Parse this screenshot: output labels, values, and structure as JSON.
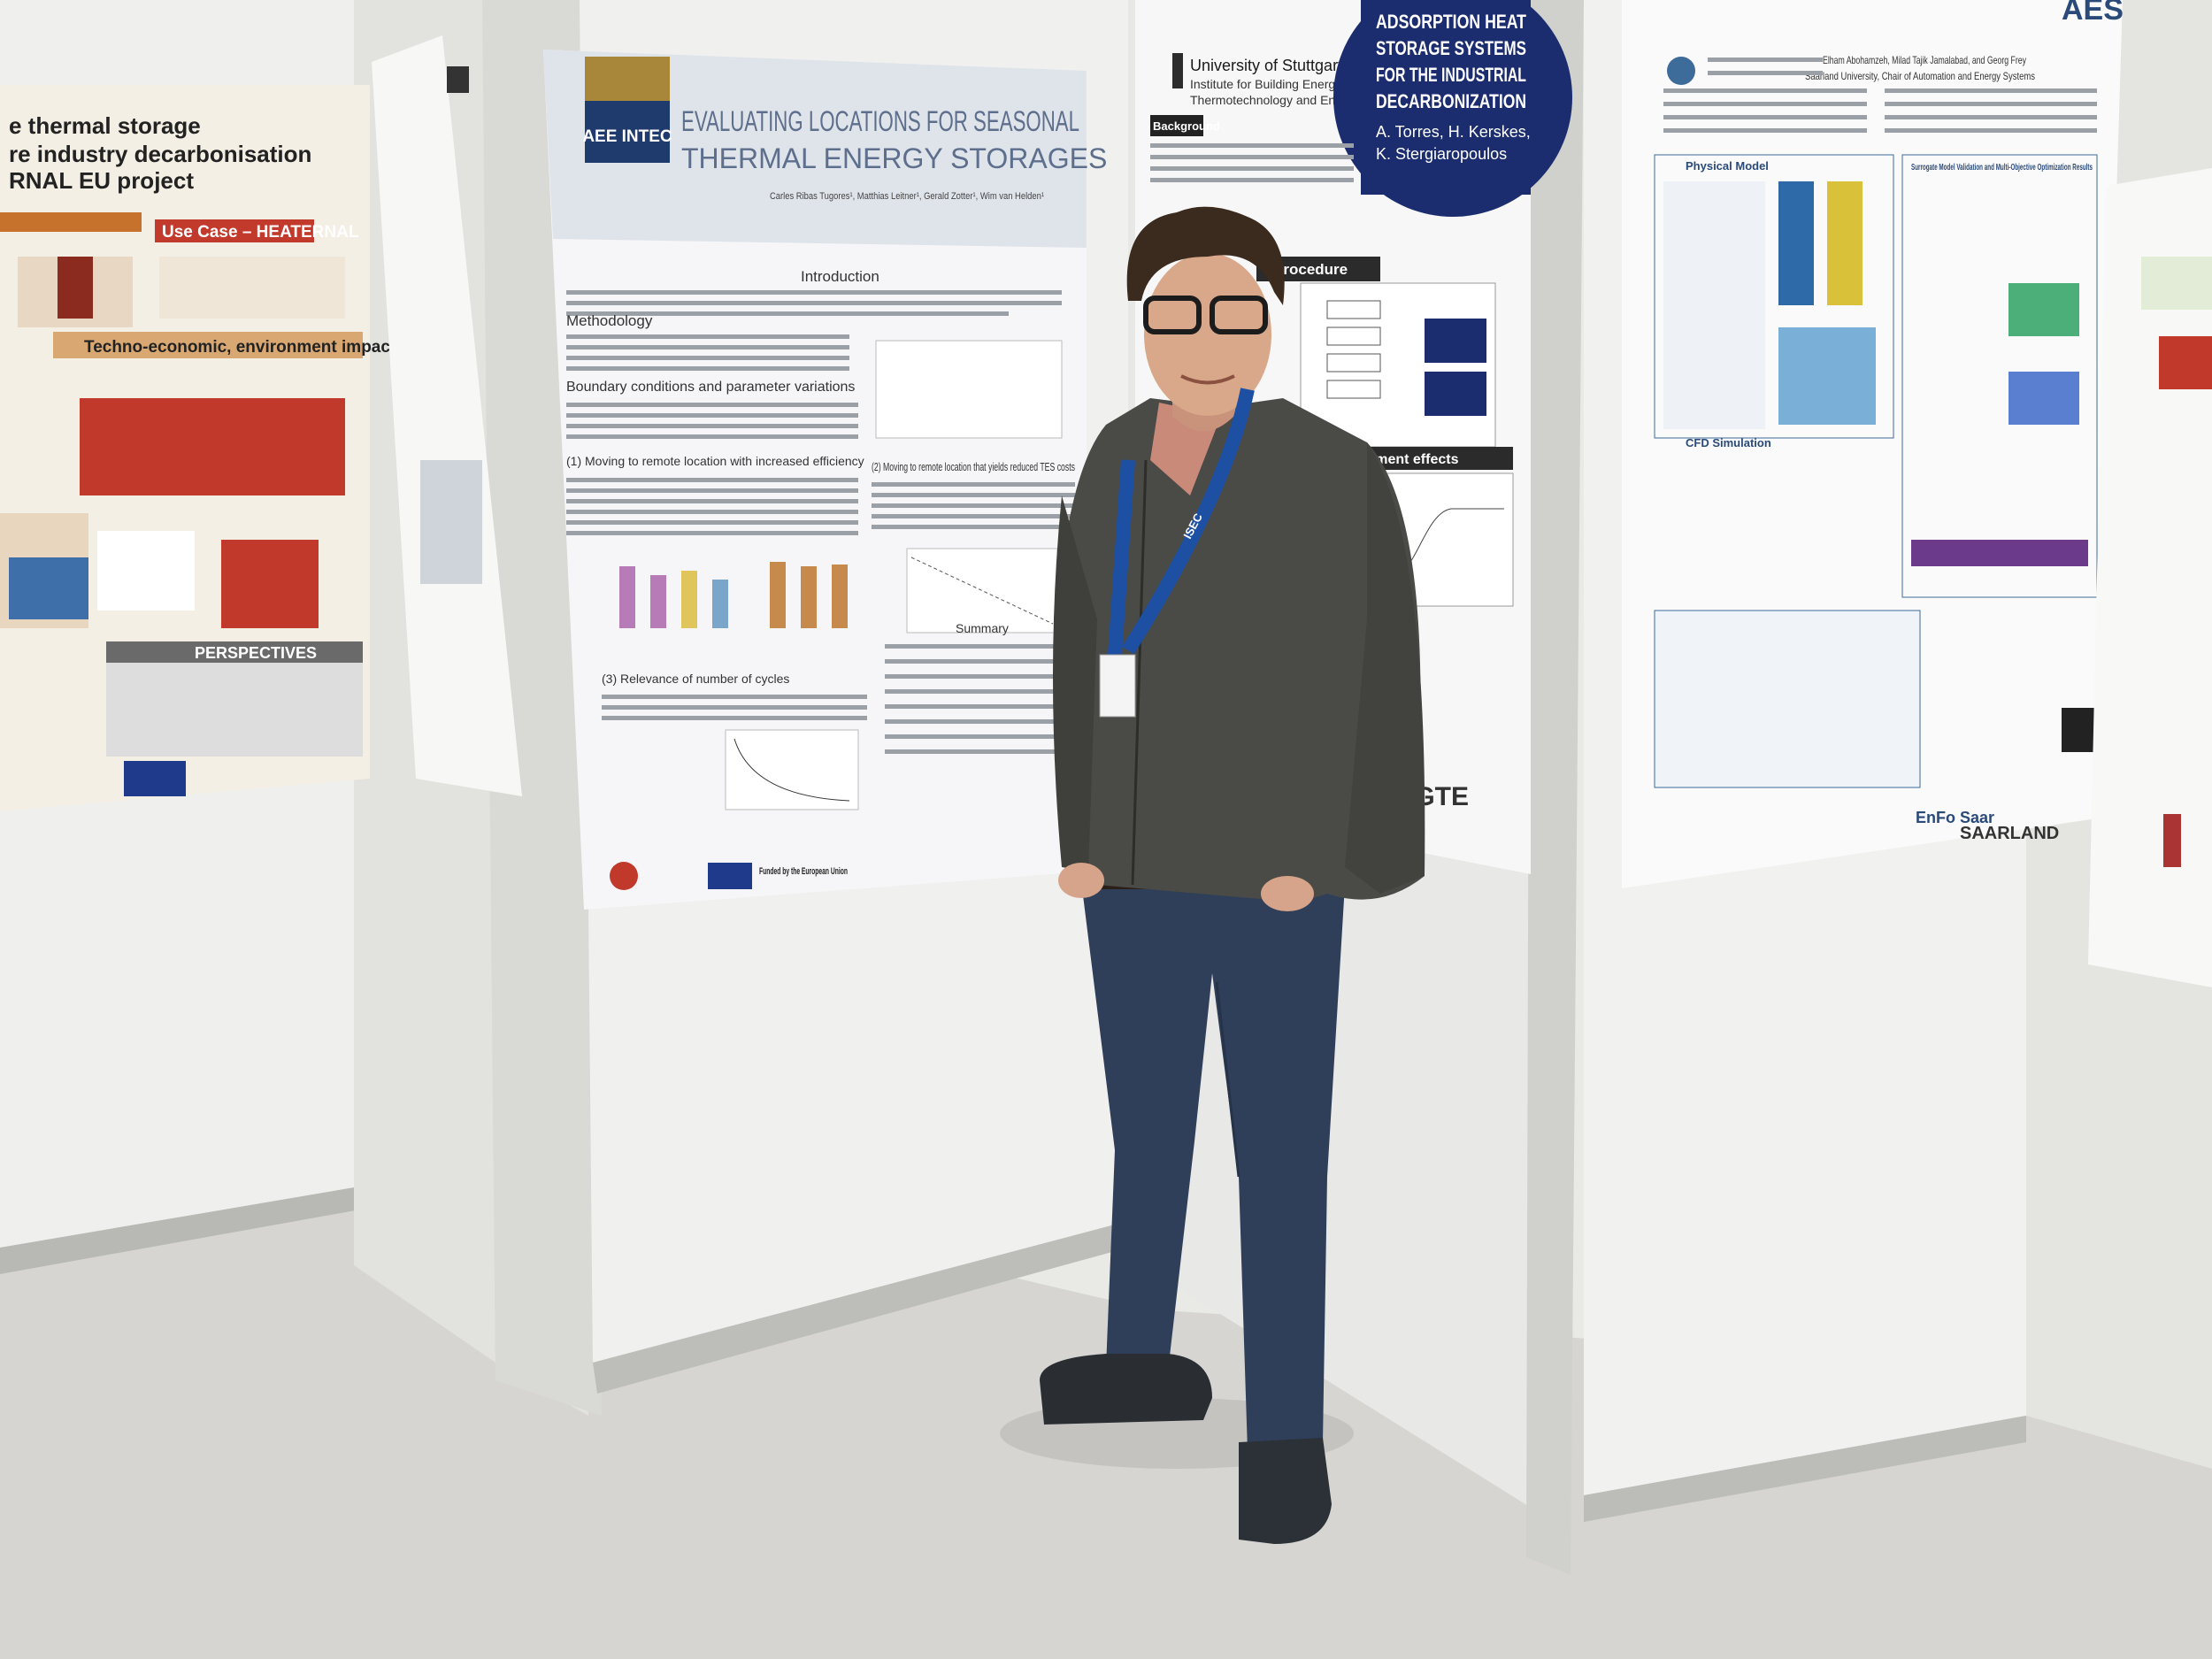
{
  "left_poster": {
    "title_lines": [
      "e thermal storage",
      "re industry decarbonisation",
      "RNAL EU project"
    ],
    "use_case": "Use Case – HEATERNAL",
    "section": "Techno-economic, environment impact",
    "perspectives": "PERSPECTIVES"
  },
  "center_poster": {
    "logo": "AEE INTEC",
    "title_lines": [
      "EVALUATING LOCATIONS FOR SEASONAL",
      "THERMAL ENERGY STORAGES"
    ],
    "authors": "Carles Ribas Tugores¹, Matthias Leitner¹, Gerald Zotter¹, Wim van Helden¹",
    "headings": [
      "Introduction",
      "Methodology",
      "Boundary conditions and parameter variations",
      "(1) Moving to remote location with increased efficiency",
      "(2) Moving to remote location that yields reduced TES costs",
      "(3) Relevance of number of cycles",
      "Summary"
    ],
    "funding": "Funded by the European Union"
  },
  "stuttgart_poster": {
    "university": "University of Stuttgart",
    "institute_lines": [
      "Institute for Building Energetics,",
      "Thermotechnology and Energy Storage"
    ],
    "title_lines": [
      "ADSORPTION HEAT",
      "STORAGE SYSTEMS",
      "FOR THE INDUSTRIAL",
      "DECARBONIZATION"
    ],
    "author_lines": [
      "A. Torres, H. Kerskes,",
      "K. Stergiaropoulos"
    ],
    "headings": [
      "Background",
      "procedure",
      "atment effects"
    ],
    "logo": "IGTE"
  },
  "saarland_poster": {
    "logo": "AES",
    "authors": "Elham Abohamzeh, Milad Tajik Jamalabad, and Georg Frey",
    "affiliation": "Saarland University, Chair of Automation and Energy Systems",
    "headings": [
      "Physical Model",
      "CFD Simulation",
      "Surrogate Model Validation and Multi-Objective Optimization Results"
    ],
    "footer_logos": [
      "EnFo Saar",
      "SAARLAND"
    ]
  },
  "badge": "ISEC"
}
